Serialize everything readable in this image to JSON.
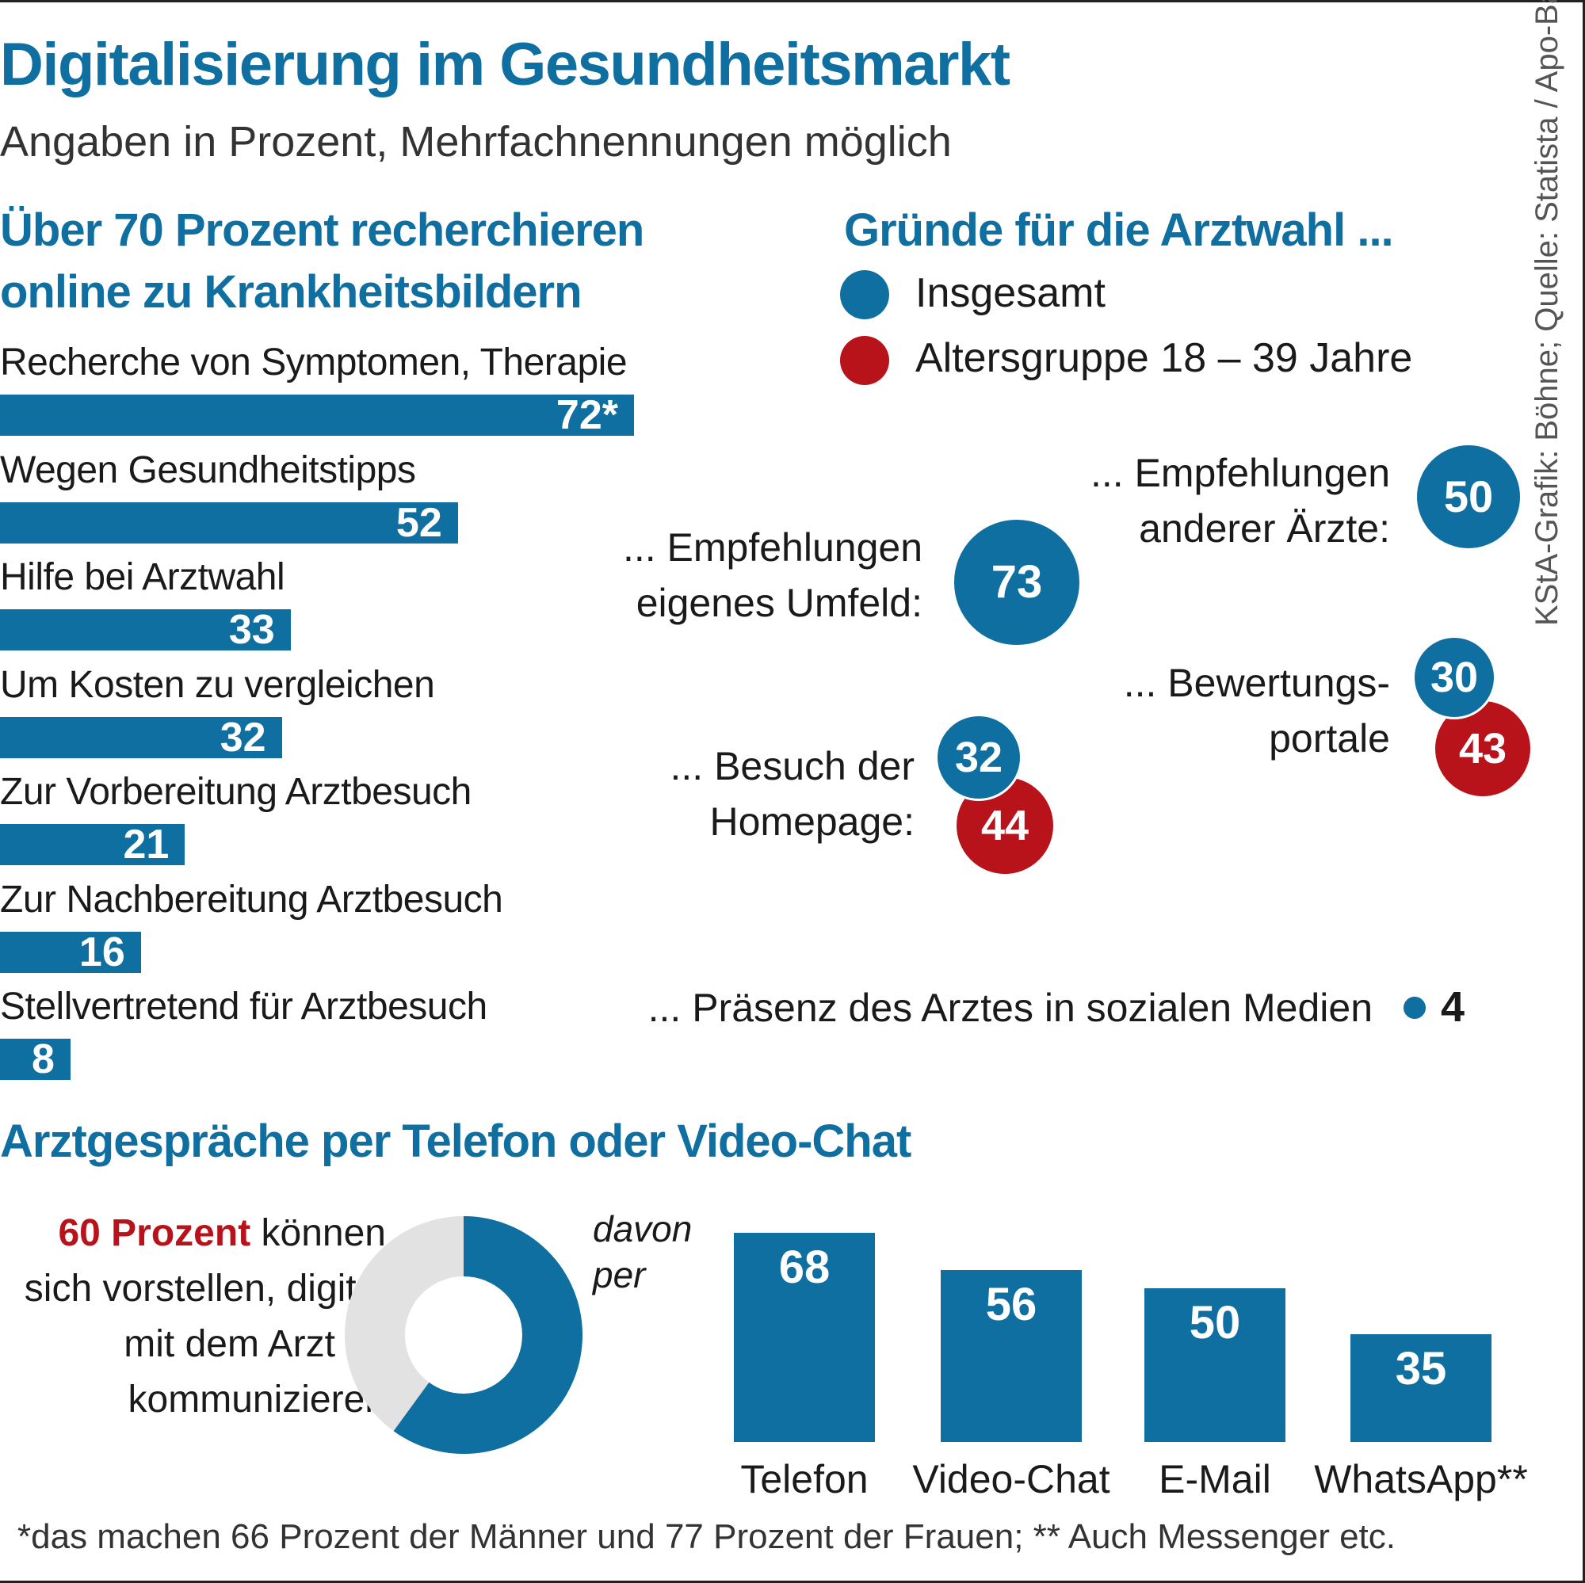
{
  "title": "Digitalisierung im Gesundheitsmarkt",
  "subtitle": "Angaben in Prozent, Mehrfachnennungen möglich",
  "source": "KStA-Grafik: Böhne; Quelle: Statista / Apo-Bank",
  "section1": {
    "line1": "Über 70 Prozent recherchieren",
    "line2": "online zu Krankheitsbildern"
  },
  "section2": {
    "title": "Gründe für die Arztwahl  ...",
    "legend": [
      "Insgesamt",
      "Altersgruppe 18 – 39 Jahre"
    ]
  },
  "section3": {
    "title": "Arztgespräche per Telefon oder Video-Chat"
  },
  "colors": {
    "blue": "#0e6fa0",
    "red": "#b8121b",
    "grey": "#e2e2e2"
  },
  "chart_data": [
    {
      "type": "bar",
      "orientation": "horizontal",
      "title": "Über 70 Prozent recherchieren online zu Krankheitsbildern",
      "categories": [
        "Recherche von Symptomen, Therapie",
        "Wegen Gesundheitstipps",
        "Hilfe bei Arztwahl",
        "Um Kosten zu vergleichen",
        "Zur Vorbereitung Arztbesuch",
        "Zur Nachbereitung Arztbesuch",
        "Stellvertretend für Arztbesuch"
      ],
      "values": [
        72,
        52,
        33,
        32,
        21,
        16,
        8
      ],
      "value_labels": [
        "72*",
        "52",
        "33",
        "32",
        "21",
        "16",
        "8"
      ]
    },
    {
      "type": "scatter",
      "title": "Gründe für die Arztwahl  ...",
      "series_names": [
        "Insgesamt",
        "Altersgruppe 18 – 39 Jahre"
      ],
      "items": [
        {
          "label1": "... Empfehlungen",
          "label2": "anderer Ärzte:",
          "insgesamt": 50,
          "altersgruppe": null
        },
        {
          "label1": "... Empfehlungen",
          "label2": "eigenes Umfeld:",
          "insgesamt": 73,
          "altersgruppe": null
        },
        {
          "label1": "... Bewertungs-",
          "label2": "portale",
          "insgesamt": 30,
          "altersgruppe": 43
        },
        {
          "label1": "... Besuch der",
          "label2": "Homepage:",
          "insgesamt": 32,
          "altersgruppe": 44
        },
        {
          "label1": "... Präsenz des Arztes in sozialen Medien",
          "label2": "",
          "insgesamt": 4,
          "altersgruppe": null
        }
      ]
    },
    {
      "type": "pie",
      "title": "Arztgespräche per Telefon oder Video-Chat",
      "values": [
        60,
        40
      ],
      "text_highlight": "60 Prozent",
      "text_rest": " können sich vorstellen, digital mit dem Arzt zu kommunizieren"
    },
    {
      "type": "bar",
      "title": "davon per",
      "categories": [
        "Telefon",
        "Video-Chat",
        "E-Mail",
        "WhatsApp**"
      ],
      "values": [
        68,
        56,
        50,
        35
      ]
    }
  ],
  "footnote": "*das machen 66 Prozent der Männer und 77 Prozent der Frauen; ** Auch Messenger etc."
}
